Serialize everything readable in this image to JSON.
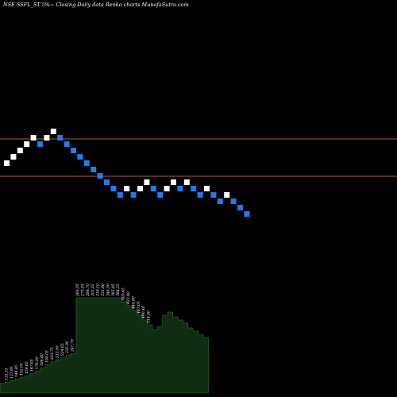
{
  "title": "NSE SSFL_ST 5%~   Closing Daily data  Renko  charts MunafaSutra.com",
  "colors": {
    "background": "#000000",
    "up_brick": "#ffffff",
    "down_brick": "#1f7bf0",
    "reference_line": "#b35a2a",
    "volume_fill": "#0f2d10",
    "volume_stroke": "#2e7d32",
    "label": "#ffffff"
  },
  "chart_data": {
    "type": "renko",
    "title": "NSE SSFL_ST 5%~   Closing Daily data  Renko  charts MunafaSutra.com",
    "reference_lines": [
      318,
      298
    ],
    "bricks": [
      {
        "dir": "up",
        "price": 293
      },
      {
        "dir": "up",
        "price": 299
      },
      {
        "dir": "up",
        "price": 305
      },
      {
        "dir": "up",
        "price": 311
      },
      {
        "dir": "up",
        "price": 317
      },
      {
        "dir": "down",
        "price": 311
      },
      {
        "dir": "up",
        "price": 317
      },
      {
        "dir": "up",
        "price": 323
      },
      {
        "dir": "down",
        "price": 317
      },
      {
        "dir": "down",
        "price": 311
      },
      {
        "dir": "down",
        "price": 305
      },
      {
        "dir": "down",
        "price": 299
      },
      {
        "dir": "down",
        "price": 293
      },
      {
        "dir": "down",
        "price": 287
      },
      {
        "dir": "down",
        "price": 281
      },
      {
        "dir": "down",
        "price": 275
      },
      {
        "dir": "down",
        "price": 269
      },
      {
        "dir": "down",
        "price": 263
      },
      {
        "dir": "up",
        "price": 269
      },
      {
        "dir": "down",
        "price": 263
      },
      {
        "dir": "up",
        "price": 269
      },
      {
        "dir": "up",
        "price": 275
      },
      {
        "dir": "down",
        "price": 269
      },
      {
        "dir": "down",
        "price": 263
      },
      {
        "dir": "up",
        "price": 269
      },
      {
        "dir": "up",
        "price": 275
      },
      {
        "dir": "down",
        "price": 269
      },
      {
        "dir": "up",
        "price": 275
      },
      {
        "dir": "down",
        "price": 269
      },
      {
        "dir": "down",
        "price": 263
      },
      {
        "dir": "up",
        "price": 269
      },
      {
        "dir": "down",
        "price": 263
      },
      {
        "dir": "down",
        "price": 257
      },
      {
        "dir": "up",
        "price": 263
      },
      {
        "dir": "down",
        "price": 257
      },
      {
        "dir": "down",
        "price": 251
      },
      {
        "dir": "down",
        "price": 245
      }
    ],
    "volume_labels": [
      "131.55",
      "137.95",
      "144.85",
      "152.05",
      "159.65",
      "167.65",
      "176.00",
      "184.80",
      "194.05",
      "203.75",
      "213.95",
      "224.65",
      "235.90",
      "247.70",
      "260.05",
      "273.05",
      "286.70",
      "301.05",
      "316.10",
      "331.90",
      "348.50",
      "365.95",
      "384.25",
      "403.45",
      "423.60",
      "444.80",
      "467.05",
      "490.40",
      "514.90"
    ],
    "volume_values": [
      1,
      2,
      3,
      4,
      5,
      6,
      7,
      8,
      9,
      10,
      11,
      12,
      13,
      14,
      15,
      16,
      17,
      18,
      19,
      20,
      21,
      22,
      23,
      24,
      25,
      26,
      27,
      28,
      29,
      30,
      31,
      32,
      33,
      34,
      35,
      36,
      37
    ]
  }
}
